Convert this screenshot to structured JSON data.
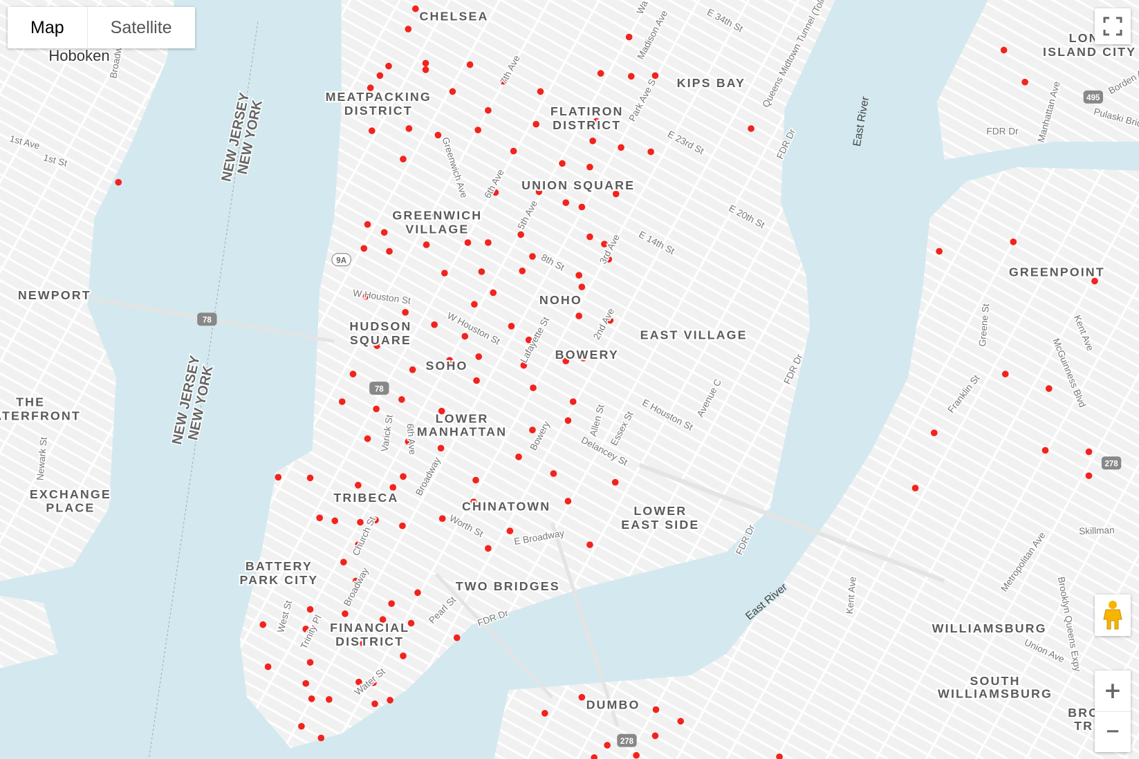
{
  "map_type_control": {
    "options": [
      "Map",
      "Satellite"
    ],
    "selected": "Map"
  },
  "controls": {
    "fullscreen_icon": "fullscreen-icon",
    "pegman_icon": "street-view-pegman-icon",
    "zoom_in": "+",
    "zoom_out": "−"
  },
  "colors": {
    "marker": "#f2231d",
    "water": "#d3e9ef",
    "land": "#f2f2f2",
    "pegman": "#f7b500"
  },
  "marker_count": 150,
  "map": {
    "neighborhoods": [
      "CHELSEA",
      "MEATPACKING",
      "DISTRICT",
      "FLATIRON",
      "DISTRICT",
      "KIPS BAY",
      "UNION SQUARE",
      "GREENWICH",
      "VILLAGE",
      "NOHO",
      "HUDSON",
      "SQUARE",
      "EAST VILLAGE",
      "SOHO",
      "BOWERY",
      "LOWER",
      "MANHATTAN",
      "TRIBECA",
      "CHINATOWN",
      "LOWER",
      "EAST SIDE",
      "BATTERY",
      "PARK CITY",
      "TWO BRIDGES",
      "FINANCIAL",
      "DISTRICT",
      "DUMBO",
      "NEWPORT",
      "THE",
      "WATERFRONT",
      "EXCHANGE",
      "PLACE",
      "GREENPOINT",
      "WILLIAMSBURG",
      "SOUTH",
      "WILLIAMSBURG",
      "LONG",
      "ISLAND CITY",
      "BRO",
      "TR"
    ],
    "city": "Hoboken",
    "states": [
      "NEW JERSEY",
      "NEW YORK",
      "NEW JERSEY",
      "NEW YORK"
    ],
    "water": [
      "East River",
      "East River"
    ],
    "streets": [
      "E 34th St",
      "Madison Ave",
      "Park Ave S",
      "7th Ave",
      "6th Ave",
      "5th Ave",
      "3rd Ave",
      "2nd Ave",
      "E 23rd St",
      "E 20th St",
      "E 14th St",
      "8th St",
      "W Houston St",
      "W Houston St",
      "Lafayette St",
      "E Houston St",
      "Greenwich Ave",
      "Varick St",
      "6th Ave",
      "Broadway",
      "Bowery",
      "Allen St",
      "Essex St",
      "Delancey St",
      "Avenue C",
      "Worth St",
      "E Broadway",
      "Church St",
      "West St",
      "Trinity Pl",
      "Broadway",
      "Pearl St",
      "Water St",
      "FDR Dr",
      "FDR Dr",
      "FDR Dr",
      "FDR Dr",
      "FDR Dr",
      "Queens Midtown Tunnel (Toll road)",
      "1st Ave",
      "1st St",
      "Newark St",
      "Greene St",
      "Franklin St",
      "Kent Ave",
      "Kent Ave",
      "McGuinness Blvd",
      "Manhattan Ave",
      "Pulaski Bridge",
      "Borden Av",
      "Skillman",
      "Metropolitan Ave",
      "Brooklyn Queens Expy",
      "Union Ave",
      "Broadway",
      "Wa",
      "5t"
    ],
    "shields": [
      "9A",
      "78",
      "78",
      "495",
      "278",
      "278"
    ]
  }
}
